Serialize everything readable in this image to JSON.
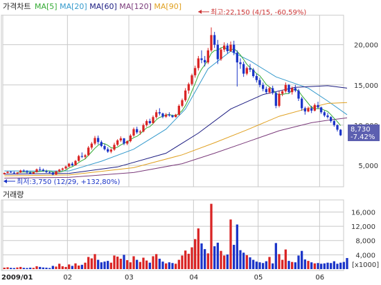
{
  "chart_data": {
    "type": "candlestick",
    "price_panel": {
      "title": "가격차트",
      "ma_legend": [
        {
          "label": "MA[5]",
          "color": "#33aa33"
        },
        {
          "label": "MA[20]",
          "color": "#3399cc"
        },
        {
          "label": "MA[60]",
          "color": "#1a1a80"
        },
        {
          "label": "MA[120]",
          "color": "#7a3a7a"
        },
        {
          "label": "MA[90]",
          "color": "#e0a020"
        }
      ],
      "y_ticks": [
        "20,000",
        "15,000",
        "10,000",
        "5,000"
      ],
      "y_tick_values": [
        20000,
        15000,
        10000,
        5000
      ],
      "ylim": [
        2500,
        23500
      ],
      "annotation_high": "최고:22,150 (4/15, -60,59%)",
      "annotation_low": "최저:3,750 (12/29, +132,80%)",
      "last_price": "8,730",
      "last_change": "-7.42%",
      "high_value": 22150,
      "low_value": 3750,
      "candles": [
        [
          3900,
          4100,
          3850,
          4050
        ],
        [
          4050,
          4250,
          4000,
          4200
        ],
        [
          4200,
          4300,
          4050,
          4100
        ],
        [
          4100,
          4250,
          3950,
          4000
        ],
        [
          4000,
          4150,
          3850,
          4100
        ],
        [
          4100,
          4450,
          4050,
          4350
        ],
        [
          4350,
          4500,
          4150,
          4250
        ],
        [
          4250,
          4400,
          4000,
          4100
        ],
        [
          4100,
          4250,
          3900,
          3950
        ],
        [
          3950,
          4200,
          3900,
          4150
        ],
        [
          4150,
          4600,
          4100,
          4500
        ],
        [
          4500,
          4800,
          4300,
          4450
        ],
        [
          4450,
          4600,
          4200,
          4300
        ],
        [
          4300,
          4450,
          4050,
          4150
        ],
        [
          4150,
          4300,
          3950,
          4100
        ],
        [
          4100,
          4150,
          3750,
          3850
        ],
        [
          3850,
          4300,
          3800,
          4250
        ],
        [
          4250,
          4550,
          4150,
          4450
        ],
        [
          4450,
          4700,
          4350,
          4600
        ],
        [
          4600,
          4950,
          4500,
          4850
        ],
        [
          4850,
          5300,
          4750,
          5200
        ],
        [
          5200,
          5400,
          4900,
          5000
        ],
        [
          5000,
          5650,
          4950,
          5550
        ],
        [
          5550,
          6300,
          5450,
          6150
        ],
        [
          6150,
          6600,
          5900,
          6050
        ],
        [
          6050,
          6400,
          5800,
          6250
        ],
        [
          6250,
          7400,
          6150,
          7200
        ],
        [
          7200,
          7900,
          6950,
          7700
        ],
        [
          7700,
          8650,
          7500,
          8400
        ],
        [
          8400,
          8700,
          7600,
          7900
        ],
        [
          7900,
          8100,
          7250,
          7400
        ],
        [
          7400,
          7650,
          6850,
          7000
        ],
        [
          7000,
          7250,
          6550,
          6700
        ],
        [
          6700,
          7100,
          6500,
          6950
        ],
        [
          6950,
          7800,
          6800,
          7550
        ],
        [
          7550,
          8250,
          7400,
          8100
        ],
        [
          8100,
          8600,
          7900,
          8350
        ],
        [
          8350,
          8400,
          7500,
          7700
        ],
        [
          7700,
          8100,
          7500,
          8000
        ],
        [
          8000,
          8900,
          7850,
          8700
        ],
        [
          8700,
          9700,
          8550,
          9500
        ],
        [
          9500,
          9800,
          8900,
          9100
        ],
        [
          9100,
          9400,
          8800,
          9200
        ],
        [
          9200,
          10200,
          9100,
          10000
        ],
        [
          10000,
          10700,
          9800,
          10500
        ],
        [
          10500,
          10800,
          10100,
          10250
        ],
        [
          10250,
          11200,
          10150,
          11000
        ],
        [
          11000,
          11900,
          10800,
          11600
        ],
        [
          11600,
          12100,
          11200,
          11450
        ],
        [
          11450,
          11550,
          10850,
          11050
        ],
        [
          11050,
          11500,
          10900,
          11300
        ],
        [
          11300,
          11600,
          11050,
          11200
        ],
        [
          11200,
          11300,
          10900,
          11000
        ],
        [
          11000,
          11400,
          10950,
          11300
        ],
        [
          11300,
          12600,
          11200,
          12400
        ],
        [
          12400,
          13300,
          12200,
          13100
        ],
        [
          13100,
          14600,
          12900,
          14300
        ],
        [
          14300,
          15300,
          13900,
          15100
        ],
        [
          15100,
          16400,
          14900,
          16200
        ],
        [
          16200,
          17400,
          15900,
          17100
        ],
        [
          17100,
          18600,
          16800,
          18300
        ],
        [
          18300,
          19300,
          17700,
          18100
        ],
        [
          18100,
          18600,
          17300,
          17800
        ],
        [
          17800,
          19600,
          17600,
          19300
        ],
        [
          19300,
          22150,
          19100,
          21200
        ],
        [
          21200,
          21600,
          19600,
          20000
        ],
        [
          20000,
          20600,
          17600,
          18200
        ],
        [
          18200,
          19600,
          18000,
          19400
        ],
        [
          19400,
          20300,
          19100,
          19900
        ],
        [
          19900,
          20200,
          18900,
          19200
        ],
        [
          19200,
          20400,
          19100,
          20000
        ],
        [
          20000,
          20500,
          18700,
          19000
        ],
        [
          19000,
          19300,
          14800,
          17800
        ],
        [
          17800,
          18300,
          17000,
          17600
        ],
        [
          17600,
          17900,
          16000,
          16400
        ],
        [
          16400,
          17300,
          16200,
          17100
        ],
        [
          17100,
          17600,
          16600,
          16900
        ],
        [
          16900,
          17100,
          15900,
          16100
        ],
        [
          16100,
          16400,
          15300,
          15600
        ],
        [
          15600,
          15900,
          14700,
          15000
        ],
        [
          15000,
          15300,
          14200,
          14500
        ],
        [
          14500,
          14800,
          13900,
          14100
        ],
        [
          14100,
          14800,
          13900,
          14600
        ],
        [
          14600,
          14900,
          13800,
          14000
        ],
        [
          14000,
          14200,
          12100,
          12400
        ],
        [
          12400,
          14200,
          12200,
          13900
        ],
        [
          13900,
          14400,
          13600,
          14200
        ],
        [
          14200,
          15300,
          14000,
          15000
        ],
        [
          15000,
          15100,
          13900,
          14100
        ],
        [
          14100,
          14800,
          13800,
          14600
        ],
        [
          14600,
          15000,
          14100,
          14300
        ],
        [
          14300,
          14500,
          13000,
          13300
        ],
        [
          13300,
          13500,
          11800,
          12100
        ],
        [
          12100,
          12300,
          11300,
          11700
        ],
        [
          11700,
          12300,
          11600,
          12100
        ],
        [
          12100,
          12400,
          11500,
          11800
        ],
        [
          11800,
          12700,
          11700,
          12500
        ],
        [
          12500,
          12900,
          12000,
          12200
        ],
        [
          12200,
          12300,
          11400,
          11600
        ],
        [
          11600,
          11800,
          11000,
          11200
        ],
        [
          11200,
          11500,
          10800,
          11000
        ],
        [
          11000,
          11100,
          10300,
          10500
        ],
        [
          10500,
          10700,
          9800,
          10000
        ],
        [
          10000,
          10100,
          9200,
          9430
        ],
        [
          9430,
          9500,
          8650,
          8730
        ]
      ],
      "ma_lines": {
        "ma20": [
          [
            0,
            4300
          ],
          [
            20,
            4300
          ],
          [
            30,
            5500
          ],
          [
            40,
            7000
          ],
          [
            50,
            9500
          ],
          [
            56,
            12000
          ],
          [
            63,
            17000
          ],
          [
            70,
            19200
          ],
          [
            76,
            18000
          ],
          [
            84,
            16000
          ],
          [
            94,
            14600
          ],
          [
            100,
            13000
          ],
          [
            106,
            11300
          ]
        ],
        "ma60": [
          [
            0,
            3900
          ],
          [
            20,
            4000
          ],
          [
            35,
            4800
          ],
          [
            50,
            6500
          ],
          [
            60,
            9000
          ],
          [
            70,
            12000
          ],
          [
            80,
            13800
          ],
          [
            90,
            14700
          ],
          [
            100,
            14900
          ],
          [
            106,
            14600
          ]
        ],
        "ma90": [
          [
            0,
            3700
          ],
          [
            20,
            3800
          ],
          [
            40,
            4700
          ],
          [
            55,
            6300
          ],
          [
            65,
            7800
          ],
          [
            75,
            9400
          ],
          [
            85,
            11100
          ],
          [
            95,
            12200
          ],
          [
            100,
            12700
          ],
          [
            106,
            12800
          ]
        ],
        "ma120": [
          [
            0,
            3400
          ],
          [
            20,
            3500
          ],
          [
            40,
            4100
          ],
          [
            55,
            5200
          ],
          [
            65,
            6500
          ],
          [
            75,
            7900
          ],
          [
            85,
            9300
          ],
          [
            95,
            10300
          ],
          [
            100,
            10600
          ],
          [
            106,
            10900
          ]
        ]
      }
    },
    "volume_panel": {
      "title": "거래량",
      "y_ticks": [
        "16,000",
        "12,000",
        "8,000",
        "4,000"
      ],
      "y_tick_values": [
        16000,
        12000,
        8000,
        4000
      ],
      "unit_label": "[x1000]",
      "ylim": [
        0,
        19000
      ],
      "values": [
        400,
        500,
        350,
        300,
        450,
        600,
        350,
        300,
        400,
        350,
        800,
        600,
        450,
        400,
        300,
        900,
        700,
        1500,
        800,
        600,
        1300,
        900,
        1600,
        1000,
        1200,
        1800,
        3400,
        3000,
        4200,
        2600,
        1900,
        2100,
        2300,
        1800,
        3800,
        3500,
        2900,
        4000,
        2500,
        1900,
        3600,
        2600,
        2000,
        3200,
        2400,
        1800,
        3600,
        4200,
        2900,
        2100,
        1600,
        1900,
        1700,
        1500,
        2600,
        3800,
        5200,
        4300,
        6100,
        8400,
        11400,
        7200,
        5600,
        4400,
        18300,
        6400,
        7400,
        5100,
        3800,
        4100,
        13900,
        6800,
        12500,
        5300,
        4600,
        3900,
        3300,
        2600,
        2100,
        1900,
        1700,
        2200,
        3400,
        1600,
        7300,
        4200,
        2600,
        5500,
        2300,
        2000,
        1900,
        3800,
        5100,
        2700,
        2300,
        1900,
        1600,
        1700,
        1500,
        1600,
        1800,
        1700,
        2200,
        1500,
        1800,
        2000,
        3100
      ]
    },
    "x_ticks": [
      {
        "label": "2009/01",
        "index": 0
      },
      {
        "label": "02",
        "index": 20
      },
      {
        "label": "03",
        "index": 39
      },
      {
        "label": "04",
        "index": 59
      },
      {
        "label": "05",
        "index": 79
      },
      {
        "label": "06",
        "index": 98
      }
    ],
    "colors": {
      "up": "#d92424",
      "down": "#1a34c8",
      "grid": "#c8c8c8",
      "axis": "#555555",
      "annotation": "#cc3333"
    }
  }
}
